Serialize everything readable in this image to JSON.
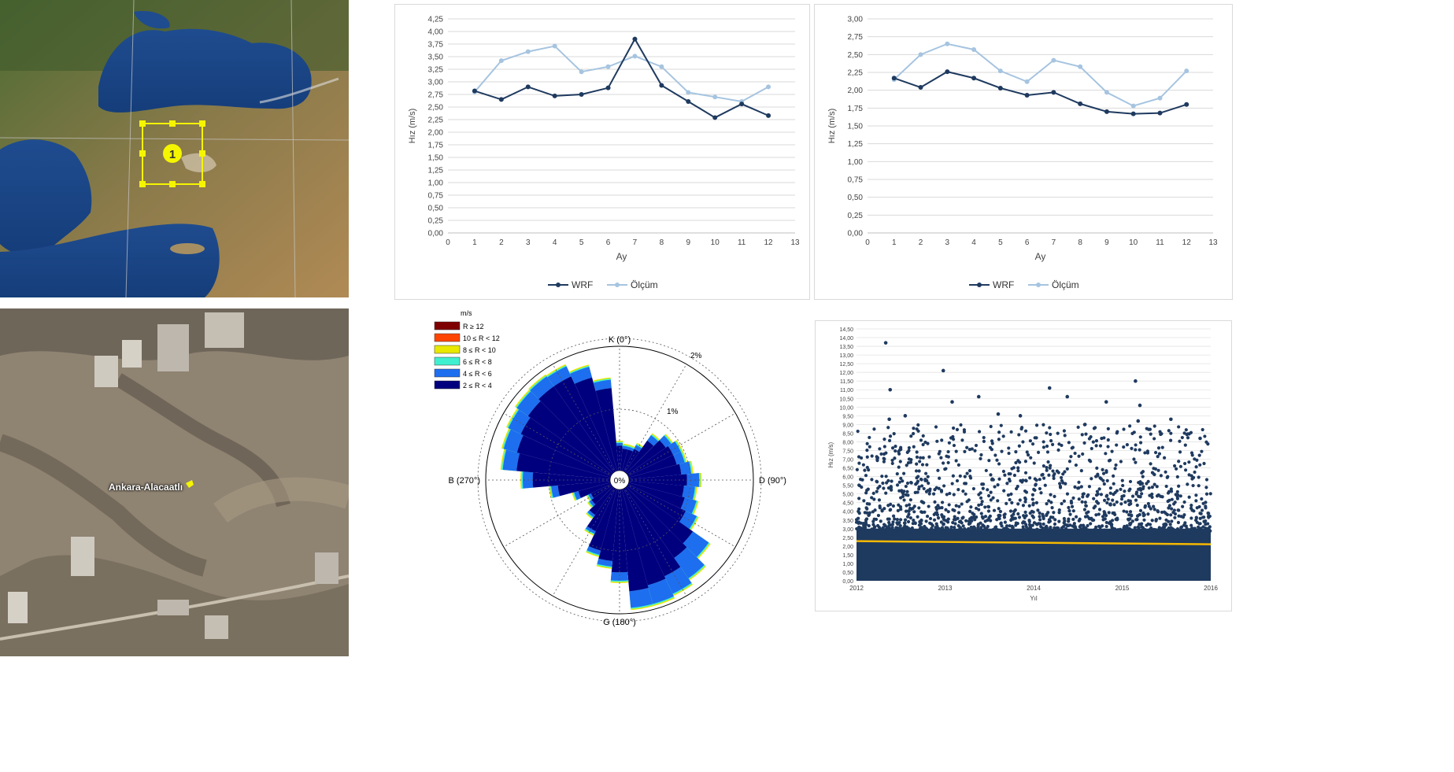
{
  "map_top": {
    "marker": "1"
  },
  "map_bottom": {
    "label": "Ankara-Alacaatlı"
  },
  "colors": {
    "wrf": "#1f3a5f",
    "olcum": "#a6c4e0",
    "scatter": "#1f3a5f",
    "trend": "#f5b800"
  },
  "chart_data": [
    {
      "type": "line",
      "xlabel": "Ay",
      "ylabel": "Hız (m/s)",
      "xlim": [
        0,
        13
      ],
      "ylim": [
        0,
        4.25
      ],
      "ytick_step": 0.25,
      "x_ticks": [
        "0",
        "1",
        "2",
        "3",
        "4",
        "5",
        "6",
        "7",
        "8",
        "9",
        "10",
        "11",
        "12",
        "13"
      ],
      "y_ticks": [
        "0,00",
        "0,25",
        "0,50",
        "0,75",
        "1,00",
        "1,25",
        "1,50",
        "1,75",
        "2,00",
        "2,25",
        "2,50",
        "2,75",
        "3,00",
        "3,25",
        "3,50",
        "3,75",
        "4,00",
        "4,25"
      ],
      "x": [
        1,
        2,
        3,
        4,
        5,
        6,
        7,
        8,
        9,
        10,
        11,
        12
      ],
      "series": [
        {
          "name": "WRF",
          "values": [
            2.82,
            2.65,
            2.9,
            2.72,
            2.75,
            2.88,
            3.85,
            2.93,
            2.61,
            2.29,
            2.56,
            2.33
          ]
        },
        {
          "name": "Ölçüm",
          "values": [
            2.8,
            3.42,
            3.6,
            3.71,
            3.2,
            3.3,
            3.51,
            3.3,
            2.79,
            2.7,
            2.61,
            2.9
          ]
        }
      ],
      "grid": true,
      "legend": "bottom"
    },
    {
      "type": "line",
      "xlabel": "Ay",
      "ylabel": "Hız (m/s)",
      "xlim": [
        0,
        13
      ],
      "ylim": [
        0,
        3.0
      ],
      "ytick_step": 0.25,
      "x_ticks": [
        "0",
        "1",
        "2",
        "3",
        "4",
        "5",
        "6",
        "7",
        "8",
        "9",
        "10",
        "11",
        "12",
        "13"
      ],
      "y_ticks": [
        "0,00",
        "0,25",
        "0,50",
        "0,75",
        "1,00",
        "1,25",
        "1,50",
        "1,75",
        "2,00",
        "2,25",
        "2,50",
        "2,75",
        "3,00"
      ],
      "x": [
        1,
        2,
        3,
        4,
        5,
        6,
        7,
        8,
        9,
        10,
        11,
        12
      ],
      "series": [
        {
          "name": "WRF",
          "values": [
            2.17,
            2.04,
            2.26,
            2.17,
            2.03,
            1.93,
            1.97,
            1.81,
            1.7,
            1.67,
            1.68,
            1.8
          ]
        },
        {
          "name": "Ölçüm",
          "values": [
            2.15,
            2.5,
            2.65,
            2.57,
            2.27,
            2.12,
            2.42,
            2.33,
            1.97,
            1.78,
            1.89,
            2.27
          ]
        }
      ],
      "grid": true,
      "legend": "bottom"
    },
    {
      "type": "rose",
      "unit_label": "m/s",
      "direction_labels": [
        "K (0°)",
        "D (90°)",
        "G (180°)",
        "B (270°)"
      ],
      "ring_labels": [
        "0%",
        "1%",
        "2%"
      ],
      "ring_values_percent": [
        0,
        1,
        2
      ],
      "bins": [
        {
          "label": "R ≥ 12",
          "color": "#7f0000"
        },
        {
          "label": "10 ≤ R < 12",
          "color": "#ff4500"
        },
        {
          "label": "8 ≤ R < 10",
          "color": "#e8e800"
        },
        {
          "label": "6 ≤ R < 8",
          "color": "#3ff0d0"
        },
        {
          "label": "4 ≤ R < 6",
          "color": "#1e6ef0"
        },
        {
          "label": "2 ≤ R < 4",
          "color": "#00007f"
        }
      ],
      "sector_percent": [
        0.45,
        0.4,
        0.4,
        0.45,
        0.7,
        0.85,
        0.9,
        0.9,
        0.95,
        1.05,
        1.0,
        1.05,
        1.15,
        1.45,
        1.55,
        1.75,
        1.8,
        1.85,
        1.5,
        1.3,
        1.15,
        0.85,
        0.6,
        0.45,
        0.4,
        0.6,
        0.95,
        1.4,
        1.7,
        1.75,
        1.8,
        1.85,
        1.9,
        1.9,
        1.75,
        1.5
      ],
      "sector_outer_percent": [
        0.05,
        0.05,
        0.05,
        0.08,
        0.12,
        0.12,
        0.15,
        0.15,
        0.18,
        0.22,
        0.2,
        0.22,
        0.22,
        0.35,
        0.45,
        0.35,
        0.35,
        0.3,
        0.15,
        0.1,
        0.08,
        0.05,
        0.05,
        0.05,
        0.05,
        0.08,
        0.12,
        0.18,
        0.25,
        0.25,
        0.25,
        0.25,
        0.22,
        0.2,
        0.2,
        0.15
      ]
    },
    {
      "type": "scatter",
      "xlabel": "Yıl",
      "ylabel": "Hız (m/s)",
      "xlim": [
        2012,
        2016
      ],
      "ylim": [
        0,
        14.5
      ],
      "x_ticks": [
        "2012",
        "2013",
        "2014",
        "2015",
        "2016"
      ],
      "y_ticks": [
        "0,00",
        "0,50",
        "1,00",
        "1,50",
        "2,00",
        "2,50",
        "3,00",
        "3,50",
        "4,00",
        "4,50",
        "5,00",
        "5,50",
        "6,00",
        "6,50",
        "7,00",
        "7,50",
        "8,00",
        "8,50",
        "9,00",
        "9,50",
        "10,00",
        "10,50",
        "11,00",
        "11,50",
        "12,00",
        "12,50",
        "13,00",
        "13,50",
        "14,00",
        "14,50"
      ],
      "outliers": [
        [
          2012.33,
          13.7
        ],
        [
          2012.38,
          11.0
        ],
        [
          2012.37,
          9.3
        ],
        [
          2012.55,
          9.5
        ],
        [
          2012.98,
          12.1
        ],
        [
          2013.08,
          10.3
        ],
        [
          2013.38,
          10.6
        ],
        [
          2013.6,
          9.6
        ],
        [
          2013.85,
          9.5
        ],
        [
          2014.18,
          11.1
        ],
        [
          2014.38,
          10.6
        ],
        [
          2014.58,
          9.0
        ],
        [
          2014.82,
          10.3
        ],
        [
          2015.15,
          11.5
        ],
        [
          2015.2,
          10.1
        ],
        [
          2015.18,
          9.2
        ],
        [
          2015.55,
          9.3
        ],
        [
          2015.88,
          8.2
        ]
      ],
      "trend": {
        "start": [
          2012,
          2.28
        ],
        "end": [
          2016,
          2.1
        ]
      },
      "grid": true
    }
  ]
}
